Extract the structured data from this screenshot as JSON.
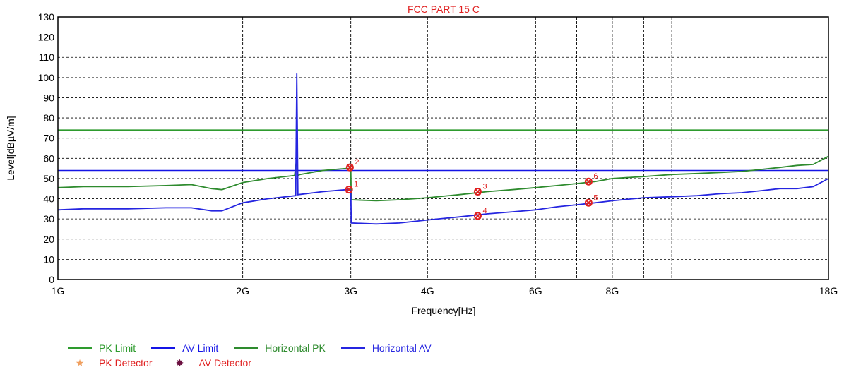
{
  "chart_data": {
    "type": "line",
    "title": "FCC PART 15 C",
    "xlabel": "Frequency[Hz]",
    "ylabel": "Level[dBµV/m]",
    "x_scale": "log",
    "xlim_hz": [
      1000000000,
      18000000000
    ],
    "ylim": [
      0,
      130
    ],
    "grid": true,
    "x_ticks": [
      {
        "label": "1G",
        "hz": 1000000000
      },
      {
        "label": "2G",
        "hz": 2000000000
      },
      {
        "label": "3G",
        "hz": 3000000000
      },
      {
        "label": "4G",
        "hz": 4000000000
      },
      {
        "label": "6G",
        "hz": 6000000000
      },
      {
        "label": "8G",
        "hz": 8000000000
      },
      {
        "label": "18G",
        "hz": 18000000000
      }
    ],
    "x_minor_ticks_hz": [
      5000000000,
      7000000000,
      9000000000,
      10000000000
    ],
    "y_ticks": [
      0,
      10,
      20,
      30,
      40,
      50,
      60,
      70,
      80,
      90,
      100,
      110,
      120,
      130
    ],
    "series": [
      {
        "name": "PK Limit",
        "color": "#2e9b2e",
        "x_hz": [
          1000000000,
          18000000000
        ],
        "y": [
          74,
          74
        ]
      },
      {
        "name": "AV Limit",
        "color": "#1414e6",
        "x_hz": [
          1000000000,
          18000000000
        ],
        "y": [
          54,
          54
        ]
      },
      {
        "name": "Horizontal PK",
        "color": "#2e8b2e",
        "x_hz": [
          1000000000,
          1100000000,
          1300000000,
          1500000000,
          1650000000,
          1780000000,
          1850000000,
          2000000000,
          2200000000,
          2430000000,
          2450000000,
          2460000000,
          2480000000,
          2700000000,
          2950000000,
          2990000000,
          3000000000,
          3005000000,
          3300000000,
          3600000000,
          4000000000,
          4500000000,
          5000000000,
          5500000000,
          6000000000,
          6500000000,
          7000000000,
          7500000000,
          8000000000,
          9000000000,
          10000000000,
          11000000000,
          12000000000,
          13000000000,
          14000000000,
          15000000000,
          16000000000,
          17000000000,
          18000000000
        ],
        "y": [
          45.5,
          46,
          46,
          46.5,
          47,
          45,
          44.5,
          48,
          50,
          51.5,
          60,
          51.5,
          52,
          54,
          55,
          55,
          54.5,
          39.5,
          39,
          39.5,
          40.5,
          42,
          43.5,
          44.5,
          45.5,
          46.5,
          47.5,
          48.5,
          50,
          51,
          52,
          52.5,
          53,
          53.5,
          54.5,
          55.5,
          56.5,
          57,
          61
        ]
      },
      {
        "name": "Horizontal AV",
        "color": "#2525e0",
        "x_hz": [
          1000000000,
          1100000000,
          1300000000,
          1500000000,
          1650000000,
          1780000000,
          1850000000,
          2000000000,
          2200000000,
          2440000000,
          2450000000,
          2455000000,
          2460000000,
          2700000000,
          2950000000,
          2990000000,
          3000000000,
          3005000000,
          3300000000,
          3600000000,
          4000000000,
          4500000000,
          5000000000,
          5500000000,
          6000000000,
          6500000000,
          7000000000,
          7500000000,
          8000000000,
          9000000000,
          10000000000,
          11000000000,
          12000000000,
          13000000000,
          14000000000,
          15000000000,
          16000000000,
          17000000000,
          18000000000
        ],
        "y": [
          34.5,
          35,
          35,
          35.5,
          35.5,
          34,
          34,
          38,
          40,
          41.5,
          102,
          74,
          42,
          43.5,
          44.5,
          44.5,
          44,
          28,
          27.5,
          28,
          29.5,
          31,
          32.5,
          33.5,
          34.5,
          36,
          37,
          38,
          39,
          40.5,
          41,
          41.5,
          42.5,
          43,
          44,
          45,
          45,
          46,
          50
        ]
      }
    ],
    "markers": [
      {
        "label": "1",
        "hz": 2980000000,
        "y": 44.5,
        "detector": "PK Detector"
      },
      {
        "label": "2",
        "hz": 2990000000,
        "y": 55.5,
        "detector": "PK Detector"
      },
      {
        "label": "3",
        "hz": 4830000000,
        "y": 43.5,
        "detector": "PK Detector"
      },
      {
        "label": "4",
        "hz": 4830000000,
        "y": 31.5,
        "detector": "AV Detector"
      },
      {
        "label": "5",
        "hz": 7320000000,
        "y": 38,
        "detector": "AV Detector"
      },
      {
        "label": "6",
        "hz": 7320000000,
        "y": 48.5,
        "detector": "PK Detector"
      }
    ],
    "marker_color": "#e02020",
    "label_color": "#e02020",
    "legend": {
      "placement": "bottom-left",
      "line_items": [
        {
          "label": "PK Limit",
          "color": "#2e9b2e"
        },
        {
          "label": "AV Limit",
          "color": "#1414e6"
        },
        {
          "label": "Horizontal PK",
          "color": "#2e8b2e"
        },
        {
          "label": "Horizontal AV",
          "color": "#2525e0"
        }
      ],
      "marker_items": [
        {
          "label": "PK Detector",
          "symbol": "★",
          "color": "#f0a060"
        },
        {
          "label": "AV Detector",
          "symbol": "✸",
          "color": "#6b1040"
        }
      ]
    }
  }
}
